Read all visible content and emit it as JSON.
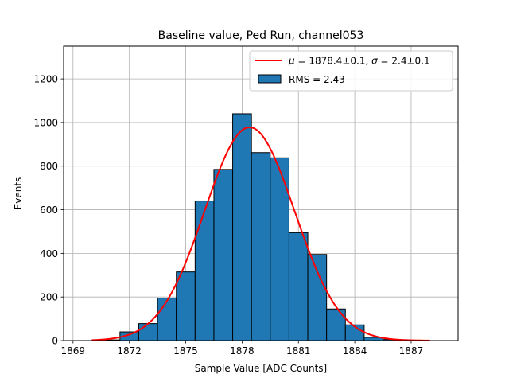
{
  "chart_data": {
    "type": "bar",
    "title": "Baseline value, Ped Run, channel053",
    "xlabel": "Sample Value [ADC Counts]",
    "ylabel": "Events",
    "xlim": [
      1868.5,
      1889.5
    ],
    "ylim": [
      0,
      1350
    ],
    "xticks": [
      1869,
      1872,
      1875,
      1878,
      1881,
      1884,
      1887
    ],
    "yticks": [
      0,
      200,
      400,
      600,
      800,
      1000,
      1200
    ],
    "grid": true,
    "legend_placement": "top-right",
    "histogram": {
      "name": "RMS = 2.43",
      "bin_edges": [
        1870.5,
        1871.5,
        1872.5,
        1873.5,
        1874.5,
        1875.5,
        1876.5,
        1877.5,
        1878.5,
        1879.5,
        1880.5,
        1881.5,
        1882.5,
        1883.5,
        1884.5,
        1885.5,
        1886.5,
        1887.5
      ],
      "counts": [
        3,
        40,
        78,
        195,
        315,
        640,
        785,
        1040,
        862,
        838,
        495,
        395,
        145,
        72,
        15,
        5,
        2
      ],
      "color": "#1f77b4"
    },
    "fit": {
      "name": "μ = 1878.4±0.1, σ = 2.4±0.1",
      "mu_label": "μ",
      "rest_label": " = 1878.4±0.1, ",
      "sigma_label": "σ",
      "sigma_rest_label": " = 2.4±0.1",
      "type": "gaussian",
      "mu": 1878.4,
      "sigma": 2.4,
      "amplitude": 978,
      "x_range": [
        1870,
        1888
      ],
      "color": "#ff0000"
    }
  }
}
